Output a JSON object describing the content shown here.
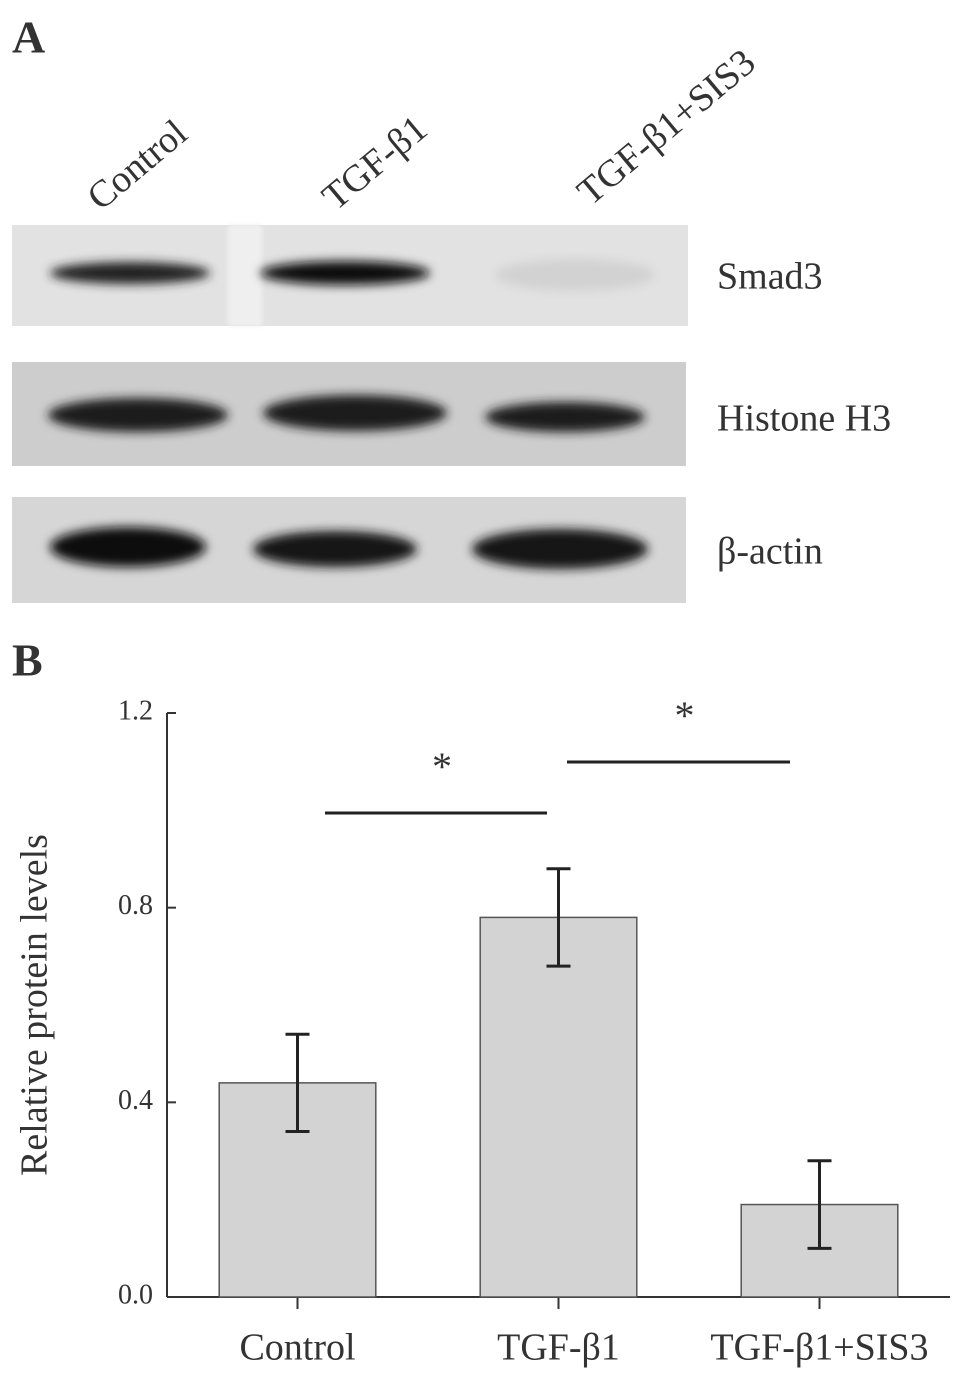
{
  "panel_a": {
    "label": "A",
    "lanes": [
      "Control",
      "TGF-β1",
      "TGF-β1+SIS3"
    ],
    "proteins": [
      "Smad3",
      "Histone H3",
      "β-actin"
    ]
  },
  "panel_b": {
    "label": "B"
  },
  "chart_data": {
    "type": "bar",
    "y_label": "Relative protein levels",
    "categories": [
      "Control",
      "TGF-β1",
      "TGF-β1+SIS3"
    ],
    "values": [
      0.44,
      0.78,
      0.19
    ],
    "errors": [
      0.1,
      0.1,
      0.09
    ],
    "color": "#d3d3d3",
    "ylim": [
      0,
      1.2
    ],
    "yticks": [
      {
        "value": 0,
        "label": "0.0"
      },
      0.4,
      0.8,
      1.2
    ],
    "annotations": [
      "*",
      "*"
    ]
  }
}
